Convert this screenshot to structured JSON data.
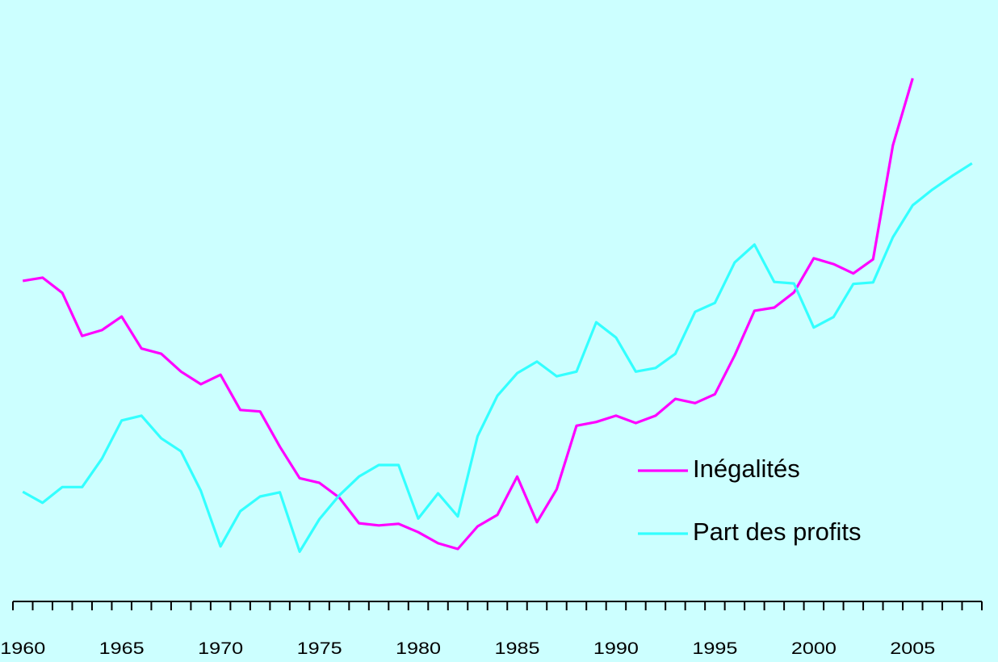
{
  "chart_data": {
    "type": "line",
    "x": [
      "1960",
      null,
      null,
      null,
      null,
      "1965",
      null,
      null,
      null,
      null,
      "1970",
      null,
      null,
      null,
      null,
      "1975",
      null,
      null,
      null,
      null,
      "1980",
      null,
      null,
      null,
      null,
      "1985",
      null,
      null,
      null,
      null,
      "1990",
      null,
      null,
      null,
      null,
      "1995",
      null,
      null,
      null,
      null,
      "2000",
      null,
      null,
      null,
      null,
      "2005",
      null,
      null,
      null
    ],
    "ylim": [
      0,
      110
    ],
    "legend": "right",
    "series": [
      {
        "name": "Inégalités",
        "color": "#ff00ff",
        "values": [
          61.1,
          61.7,
          58.8,
          50.6,
          51.7,
          54.3,
          48.2,
          47.2,
          43.8,
          41.4,
          43.2,
          36.5,
          36.2,
          29.5,
          23.5,
          22.6,
          19.8,
          14.9,
          14.5,
          14.8,
          13.2,
          11.1,
          10.0,
          14.3,
          16.5,
          23.8,
          15.1,
          21.4,
          33.5,
          34.2,
          35.4,
          34.0,
          35.4,
          38.6,
          37.8,
          39.5,
          46.9,
          55.4,
          56.0,
          58.9,
          65.4,
          64.3,
          62.5,
          65.2,
          86.9,
          99.7,
          null,
          null,
          null
        ]
      },
      {
        "name": "Part des profits",
        "color": "#33ffff",
        "values": [
          20.9,
          18.8,
          21.8,
          21.8,
          27.2,
          34.5,
          35.4,
          31.1,
          28.6,
          21.1,
          10.5,
          17.2,
          20.0,
          20.8,
          9.5,
          15.7,
          20.2,
          23.8,
          26.0,
          26.0,
          15.8,
          20.6,
          16.2,
          31.5,
          39.2,
          43.5,
          45.7,
          42.9,
          43.8,
          53.2,
          50.3,
          43.8,
          44.5,
          47.2,
          55.2,
          56.9,
          64.6,
          68.0,
          60.9,
          60.6,
          52.2,
          54.2,
          60.5,
          60.8,
          69.4,
          75.5,
          78.5,
          81.1,
          83.5
        ]
      }
    ]
  }
}
